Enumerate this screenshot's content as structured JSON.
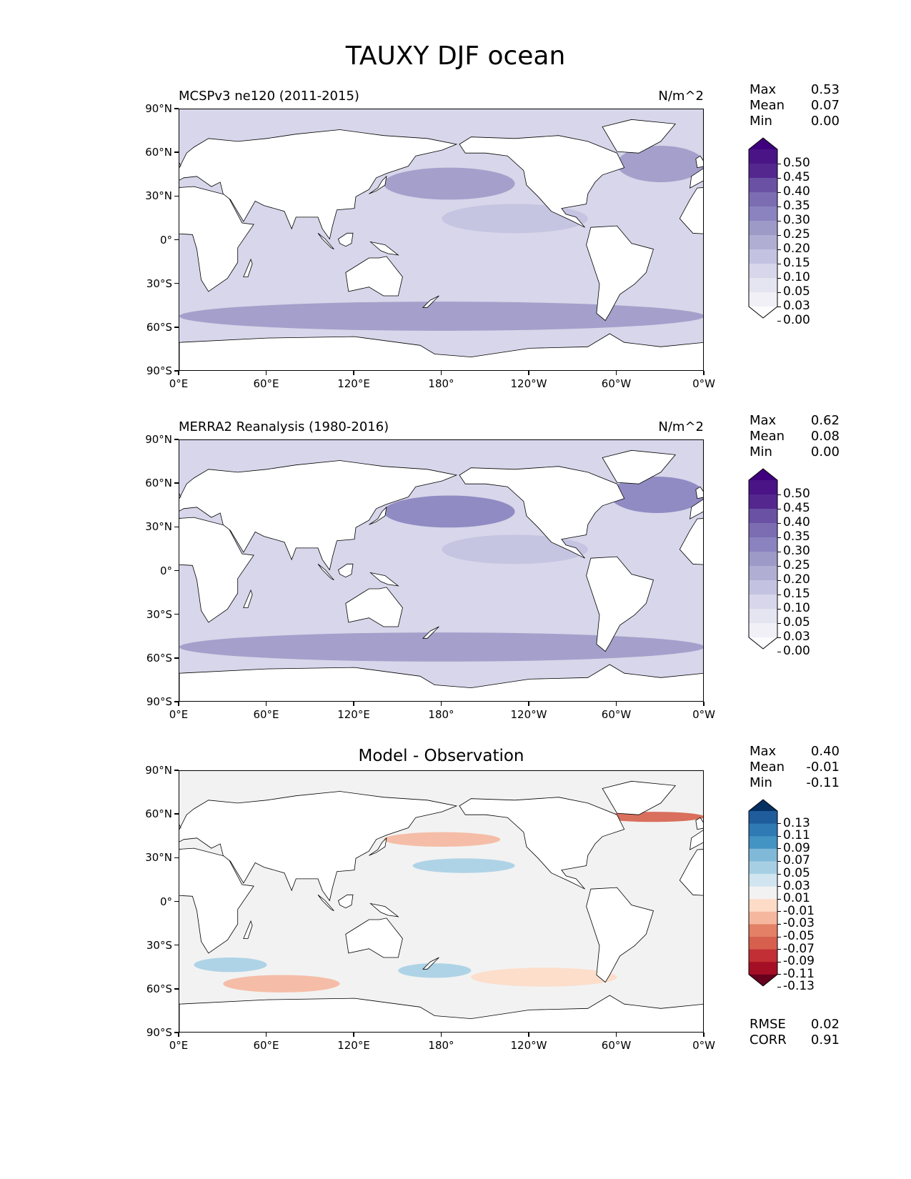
{
  "figure": {
    "title": "TAUXY DJF ocean"
  },
  "x_ticks": [
    "0°E",
    "60°E",
    "120°E",
    "180°",
    "120°W",
    "60°W",
    "0°W"
  ],
  "y_ticks": [
    "90°N",
    "60°N",
    "30°N",
    "0°",
    "30°S",
    "60°S",
    "90°S"
  ],
  "panels": [
    {
      "left_title": "MCSPv3 ne120 (2011-2015)",
      "right_title": "N/m^2",
      "center_title": "",
      "stats": [
        {
          "label": "Max",
          "value": "0.53"
        },
        {
          "label": "Mean",
          "value": "0.07"
        },
        {
          "label": "Min",
          "value": "0.00"
        }
      ],
      "colorbar_labels": [
        "0.50",
        "0.45",
        "0.40",
        "0.35",
        "0.30",
        "0.25",
        "0.20",
        "0.15",
        "0.10",
        "0.05",
        "0.03",
        "0.00"
      ],
      "colorbar_colors": [
        "#3f007d",
        "#4a1486",
        "#54278f",
        "#6a51a3",
        "#7c6db3",
        "#8a83bf",
        "#9e9ac8",
        "#b1aed4",
        "#c3c2e0",
        "#d7d6ea",
        "#e5e4f1",
        "#f1f0f7",
        "#fcfbfd"
      ],
      "extra_stats": []
    },
    {
      "left_title": "MERRA2 Reanalysis (1980-2016)",
      "right_title": "N/m^2",
      "center_title": "",
      "stats": [
        {
          "label": "Max",
          "value": "0.62"
        },
        {
          "label": "Mean",
          "value": "0.08"
        },
        {
          "label": "Min",
          "value": "0.00"
        }
      ],
      "colorbar_labels": [
        "0.50",
        "0.45",
        "0.40",
        "0.35",
        "0.30",
        "0.25",
        "0.20",
        "0.15",
        "0.10",
        "0.05",
        "0.03",
        "0.00"
      ],
      "colorbar_colors": [
        "#3f007d",
        "#4a1486",
        "#54278f",
        "#6a51a3",
        "#7c6db3",
        "#8a83bf",
        "#9e9ac8",
        "#b1aed4",
        "#c3c2e0",
        "#d7d6ea",
        "#e5e4f1",
        "#f1f0f7",
        "#fcfbfd"
      ],
      "extra_stats": []
    },
    {
      "left_title": "",
      "right_title": "",
      "center_title": "Model - Observation",
      "stats": [
        {
          "label": "Max",
          "value": "0.40"
        },
        {
          "label": "Mean",
          "value": "-0.01"
        },
        {
          "label": "Min",
          "value": "-0.11"
        }
      ],
      "colorbar_labels": [
        "0.13",
        "0.11",
        "0.09",
        "0.07",
        "0.05",
        "0.03",
        "0.01",
        "-0.01",
        "-0.03",
        "-0.05",
        "-0.07",
        "-0.09",
        "-0.11",
        "-0.13"
      ],
      "colorbar_colors": [
        "#053061",
        "#1f5c9b",
        "#2f79b5",
        "#4393c3",
        "#80b9d8",
        "#a7cfe4",
        "#d1e5f0",
        "#f2f2f2",
        "#fddbc7",
        "#f5b79e",
        "#e48066",
        "#d6604d",
        "#c22f34",
        "#a50f25",
        "#67001f"
      ],
      "extra_stats": [
        {
          "label": "RMSE",
          "value": "0.02"
        },
        {
          "label": "CORR",
          "value": "0.91"
        }
      ]
    }
  ],
  "chart_data": [
    {
      "type": "heatmap",
      "title": "MCSPv3 ne120 (2011-2015)",
      "units": "N/m^2",
      "xlim": [
        0,
        360
      ],
      "ylim": [
        -90,
        90
      ],
      "levels": [
        0.0,
        0.03,
        0.05,
        0.1,
        0.15,
        0.2,
        0.25,
        0.3,
        0.35,
        0.4,
        0.45,
        0.5
      ],
      "max": 0.53,
      "mean": 0.07,
      "min": 0.0,
      "bands": [
        {
          "lon": [
            140,
            230
          ],
          "lat": [
            28,
            50
          ],
          "value": 0.22
        },
        {
          "lon": [
            300,
            360
          ],
          "lat": [
            40,
            65
          ],
          "value": 0.2
        },
        {
          "lon": [
            0,
            360
          ],
          "lat": [
            -62,
            -42
          ],
          "value": 0.2
        },
        {
          "lon": [
            180,
            280
          ],
          "lat": [
            5,
            25
          ],
          "value": 0.1
        },
        {
          "lon": [
            0,
            360
          ],
          "lat": [
            -30,
            -10
          ],
          "value": 0.08
        }
      ]
    },
    {
      "type": "heatmap",
      "title": "MERRA2 Reanalysis (1980-2016)",
      "units": "N/m^2",
      "xlim": [
        0,
        360
      ],
      "ylim": [
        -90,
        90
      ],
      "levels": [
        0.0,
        0.03,
        0.05,
        0.1,
        0.15,
        0.2,
        0.25,
        0.3,
        0.35,
        0.4,
        0.45,
        0.5
      ],
      "max": 0.62,
      "mean": 0.08,
      "min": 0.0,
      "bands": [
        {
          "lon": [
            140,
            230
          ],
          "lat": [
            30,
            52
          ],
          "value": 0.26
        },
        {
          "lon": [
            295,
            360
          ],
          "lat": [
            40,
            65
          ],
          "value": 0.25
        },
        {
          "lon": [
            0,
            360
          ],
          "lat": [
            -62,
            -42
          ],
          "value": 0.22
        },
        {
          "lon": [
            180,
            280
          ],
          "lat": [
            5,
            25
          ],
          "value": 0.12
        },
        {
          "lon": [
            0,
            360
          ],
          "lat": [
            -30,
            -10
          ],
          "value": 0.08
        }
      ]
    },
    {
      "type": "heatmap",
      "title": "Model - Observation",
      "xlim": [
        0,
        360
      ],
      "ylim": [
        -90,
        90
      ],
      "levels": [
        -0.13,
        -0.11,
        -0.09,
        -0.07,
        -0.05,
        -0.03,
        -0.01,
        0.01,
        0.03,
        0.05,
        0.07,
        0.09,
        0.11,
        0.13
      ],
      "max": 0.4,
      "mean": -0.01,
      "min": -0.11,
      "rmse": 0.02,
      "corr": 0.91,
      "bands": [
        {
          "lon": [
            140,
            220
          ],
          "lat": [
            38,
            48
          ],
          "value": -0.05
        },
        {
          "lon": [
            290,
            360
          ],
          "lat": [
            55,
            62
          ],
          "value": -0.09
        },
        {
          "lon": [
            160,
            230
          ],
          "lat": [
            20,
            30
          ],
          "value": 0.03
        },
        {
          "lon": [
            30,
            110
          ],
          "lat": [
            -62,
            -50
          ],
          "value": -0.04
        },
        {
          "lon": [
            200,
            300
          ],
          "lat": [
            -58,
            -45
          ],
          "value": -0.03
        },
        {
          "lon": [
            10,
            60
          ],
          "lat": [
            -48,
            -38
          ],
          "value": 0.03
        },
        {
          "lon": [
            150,
            200
          ],
          "lat": [
            -52,
            -42
          ],
          "value": 0.03
        }
      ]
    }
  ]
}
